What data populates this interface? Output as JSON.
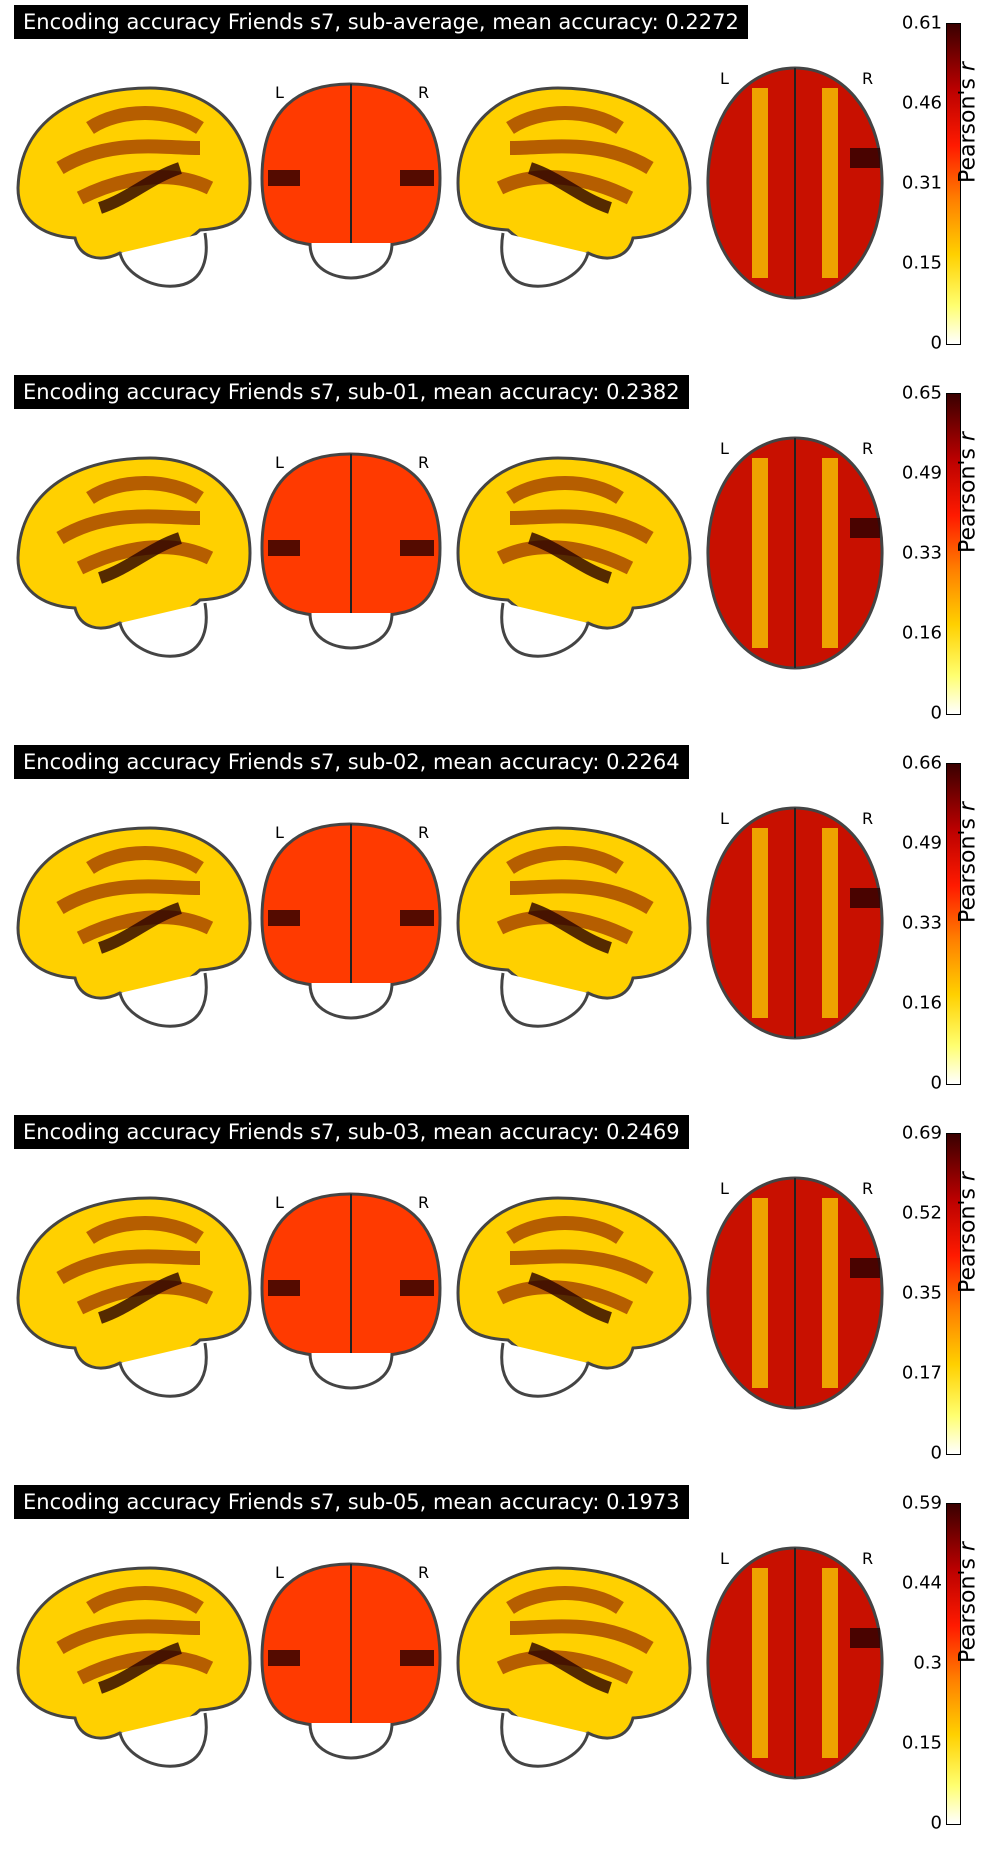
{
  "panels": [
    {
      "title": "Encoding accuracy Friends s7, sub-average, mean accuracy: 0.2272",
      "ticks": [
        "0.61",
        "0.46",
        "0.31",
        "0.15",
        "0"
      ]
    },
    {
      "title": "Encoding accuracy Friends s7, sub-01, mean accuracy: 0.2382",
      "ticks": [
        "0.65",
        "0.49",
        "0.33",
        "0.16",
        "0"
      ]
    },
    {
      "title": "Encoding accuracy Friends s7, sub-02, mean accuracy: 0.2264",
      "ticks": [
        "0.66",
        "0.49",
        "0.33",
        "0.16",
        "0"
      ]
    },
    {
      "title": "Encoding accuracy Friends s7, sub-03, mean accuracy: 0.2469",
      "ticks": [
        "0.69",
        "0.52",
        "0.35",
        "0.17",
        "0"
      ]
    },
    {
      "title": "Encoding accuracy Friends s7, sub-05, mean accuracy: 0.1973",
      "ticks": [
        "0.59",
        "0.44",
        "0.3",
        "0.15",
        "0"
      ]
    }
  ],
  "colorbar_label": "Pearson's",
  "colorbar_label_var": "r",
  "hemisphere_left": "L",
  "hemisphere_right": "R",
  "colormap": "cold_hot",
  "colors": {
    "low": "#ffffff",
    "mid": "#ff8000",
    "high": "#3a0000"
  }
}
